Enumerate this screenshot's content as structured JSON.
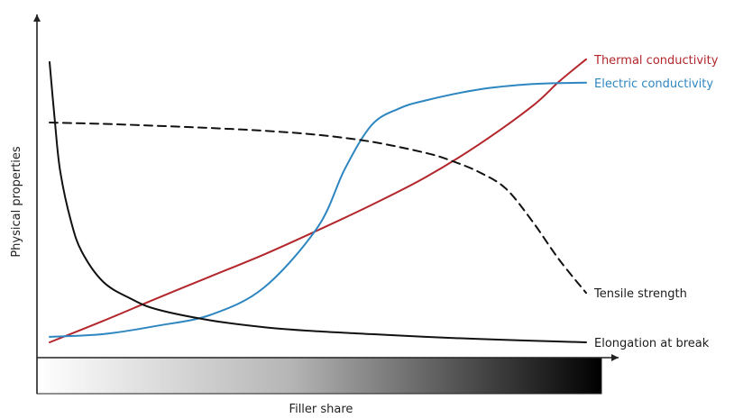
{
  "chart_data": {
    "type": "line",
    "xlabel": "Filler share",
    "ylabel": "Physical properties",
    "xlim": [
      0,
      1
    ],
    "ylim": [
      0,
      1
    ],
    "x_axis_bar": "gradient from white to black showing increasing filler share",
    "series": [
      {
        "name": "Thermal conductivity",
        "color": "#b3262b",
        "style": "solid",
        "x": [
          0.0,
          0.1,
          0.2,
          0.3,
          0.4,
          0.5,
          0.6,
          0.7,
          0.8,
          0.9,
          0.95,
          1.0
        ],
        "y": [
          0.0,
          0.078,
          0.16,
          0.24,
          0.32,
          0.408,
          0.5,
          0.6,
          0.72,
          0.86,
          0.95,
          1.03
        ]
      },
      {
        "name": "Electric conductivity",
        "color": "#2e86c1",
        "style": "solid",
        "x": [
          0.0,
          0.1,
          0.2,
          0.3,
          0.4,
          0.5,
          0.55,
          0.6,
          0.65,
          0.7,
          0.8,
          0.9,
          1.0
        ],
        "y": [
          0.02,
          0.03,
          0.06,
          0.1,
          0.2,
          0.42,
          0.63,
          0.79,
          0.85,
          0.88,
          0.92,
          0.94,
          0.945
        ]
      },
      {
        "name": "Tensile strength",
        "color": "#111111",
        "style": "dashed",
        "x": [
          0.0,
          0.1,
          0.2,
          0.3,
          0.4,
          0.5,
          0.6,
          0.7,
          0.75,
          0.8,
          0.85,
          0.9,
          0.95,
          1.0
        ],
        "y": [
          0.8,
          0.795,
          0.788,
          0.78,
          0.77,
          0.755,
          0.73,
          0.69,
          0.66,
          0.62,
          0.56,
          0.44,
          0.3,
          0.18
        ]
      },
      {
        "name": "Elongation at break",
        "color": "#111111",
        "style": "solid",
        "x": [
          0.0,
          0.01,
          0.02,
          0.04,
          0.06,
          0.1,
          0.15,
          0.2,
          0.3,
          0.4,
          0.5,
          0.6,
          0.7,
          0.8,
          0.9,
          1.0
        ],
        "y": [
          1.02,
          0.8,
          0.62,
          0.44,
          0.33,
          0.22,
          0.16,
          0.12,
          0.08,
          0.055,
          0.04,
          0.03,
          0.02,
          0.012,
          0.006,
          0.0
        ]
      }
    ]
  }
}
